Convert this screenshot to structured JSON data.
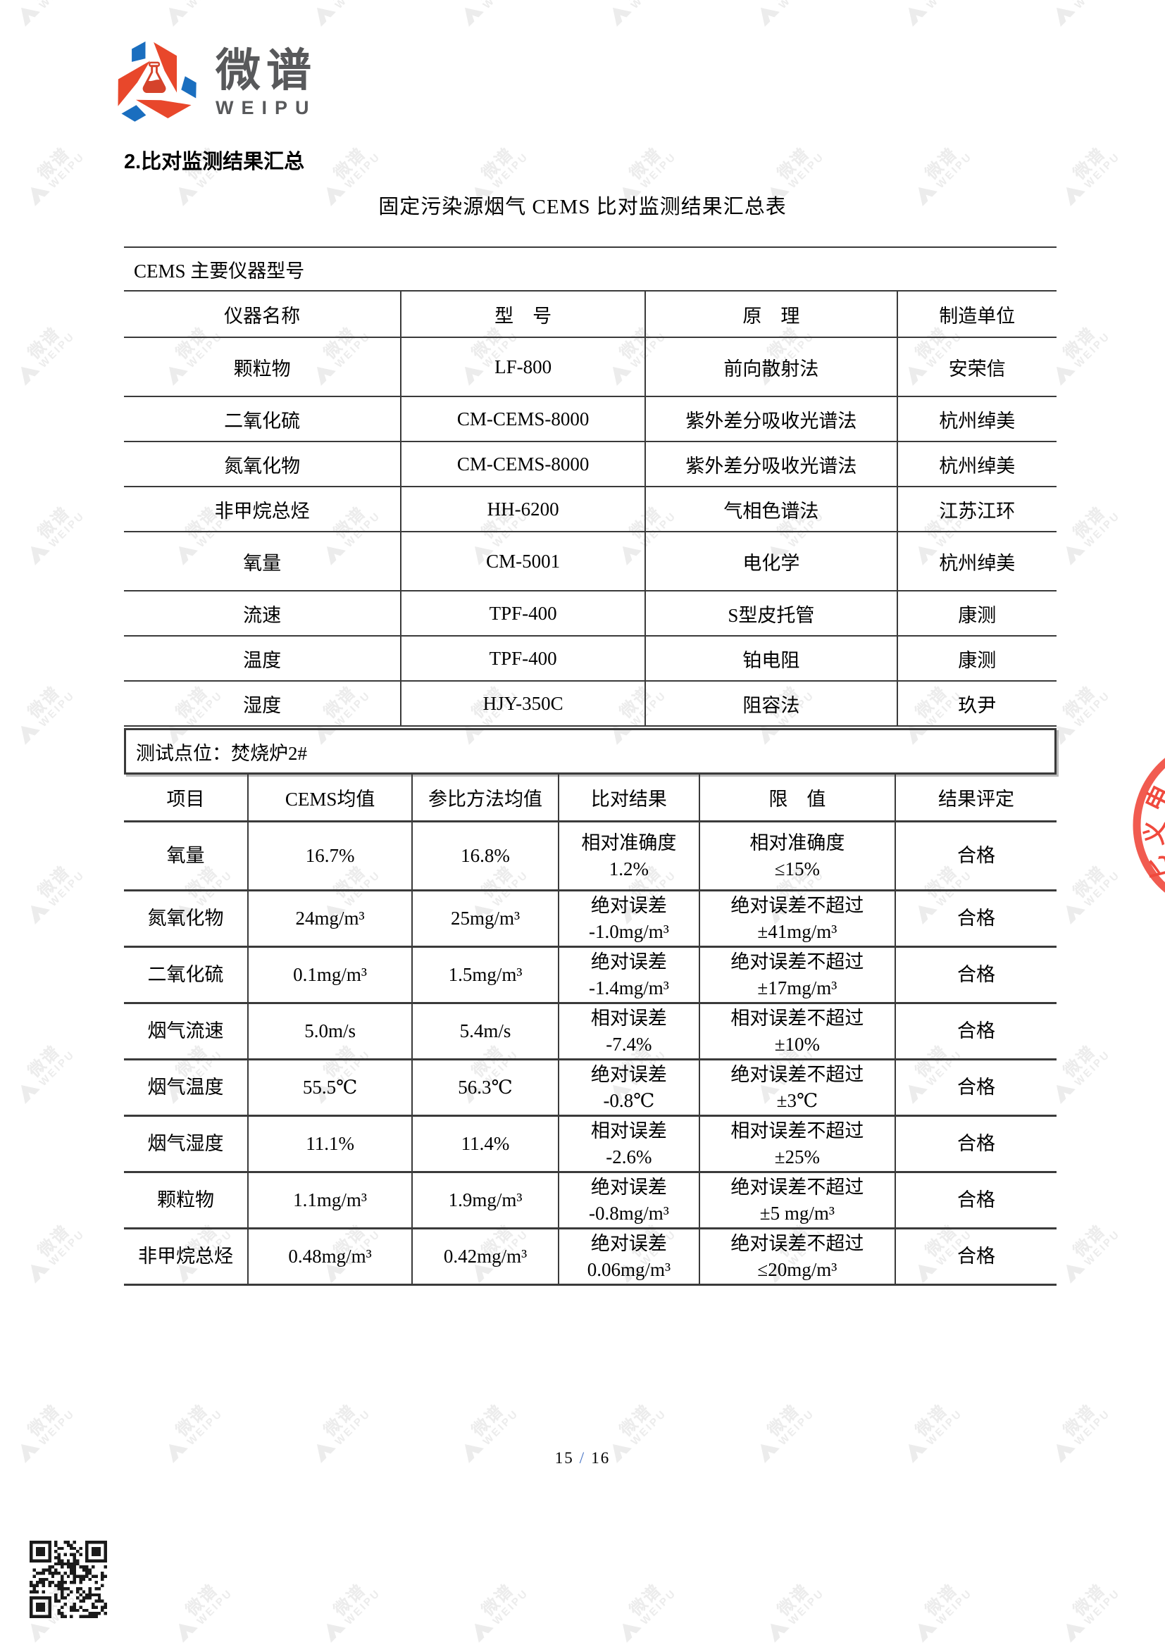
{
  "logo": {
    "name_cn": "微谱",
    "name_en": "WEIPU",
    "mark": "triangle-knot-flask-logo",
    "blue": "#1a6ebf",
    "red": "#e8472b",
    "text_color": "#58595b"
  },
  "heading": "2.比对监测结果汇总",
  "table_title": "固定污染源烟气 CEMS 比对监测结果汇总表",
  "instrument_table": {
    "section_title": "CEMS 主要仪器型号",
    "headers": [
      "仪器名称",
      "型　号",
      "原　理",
      "制造单位"
    ],
    "rows": [
      [
        "颗粒物",
        "LF-800",
        "前向散射法",
        "安荣信"
      ],
      [
        "二氧化硫",
        "CM-CEMS-8000",
        "紫外差分吸收光谱法",
        "杭州绰美"
      ],
      [
        "氮氧化物",
        "CM-CEMS-8000",
        "紫外差分吸收光谱法",
        "杭州绰美"
      ],
      [
        "非甲烷总烃",
        "HH-6200",
        "气相色谱法",
        "江苏江环"
      ],
      [
        "氧量",
        "CM-5001",
        "电化学",
        "杭州绰美"
      ],
      [
        "流速",
        "TPF-400",
        "S型皮托管",
        "康测"
      ],
      [
        "温度",
        "TPF-400",
        "铂电阻",
        "康测"
      ],
      [
        "湿度",
        "HJY-350C",
        "阻容法",
        "玖尹"
      ]
    ]
  },
  "monitoring_table": {
    "site_label": "测试点位：焚烧炉2#",
    "headers": [
      "项目",
      "CEMS均值",
      "参比方法均值",
      "比对结果",
      "限　值",
      "结果评定"
    ],
    "rows": [
      {
        "item": "氧量",
        "cems_avg": "16.7%",
        "reference_avg": "16.8%",
        "comparison": "相对准确度\n1.2%",
        "limit": "相对准确度\n≤15%",
        "verdict": "合格"
      },
      {
        "item": "氮氧化物",
        "cems_avg": "24mg/m³",
        "reference_avg": "25mg/m³",
        "comparison": "绝对误差\n-1.0mg/m³",
        "limit": "绝对误差不超过\n±41mg/m³",
        "verdict": "合格"
      },
      {
        "item": "二氧化硫",
        "cems_avg": "0.1mg/m³",
        "reference_avg": "1.5mg/m³",
        "comparison": "绝对误差\n-1.4mg/m³",
        "limit": "绝对误差不超过\n±17mg/m³",
        "verdict": "合格"
      },
      {
        "item": "烟气流速",
        "cems_avg": "5.0m/s",
        "reference_avg": "5.4m/s",
        "comparison": "相对误差\n-7.4%",
        "limit": "相对误差不超过\n±10%",
        "verdict": "合格"
      },
      {
        "item": "烟气温度",
        "cems_avg": "55.5℃",
        "reference_avg": "56.3℃",
        "comparison": "绝对误差\n-0.8℃",
        "limit": "绝对误差不超过\n±3℃",
        "verdict": "合格"
      },
      {
        "item": "烟气湿度",
        "cems_avg": "11.1%",
        "reference_avg": "11.4%",
        "comparison": "相对误差\n-2.6%",
        "limit": "相对误差不超过\n±25%",
        "verdict": "合格"
      },
      {
        "item": "颗粒物",
        "cems_avg": "1.1mg/m³",
        "reference_avg": "1.9mg/m³",
        "comparison": "绝对误差\n-0.8mg/m³",
        "limit": "绝对误差不超过\n±5 mg/m³",
        "verdict": "合格"
      },
      {
        "item": "非甲烷总烃",
        "cems_avg": "0.48mg/m³",
        "reference_avg": "0.42mg/m³",
        "comparison": "绝对误差\n0.06mg/m³",
        "limit": "绝对误差不超过\n≤20mg/m³",
        "verdict": "合格"
      }
    ]
  },
  "footer": {
    "page_current": "15",
    "separator": "/",
    "page_total": "16"
  },
  "watermark": {
    "text_cn": "微谱",
    "text_en": "WEIPU",
    "color": "#ececec"
  },
  "seal": {
    "color": "#f0493d",
    "visible_glyphs": [
      "申",
      "义",
      "匕"
    ]
  },
  "qr_code": {
    "present": true
  }
}
